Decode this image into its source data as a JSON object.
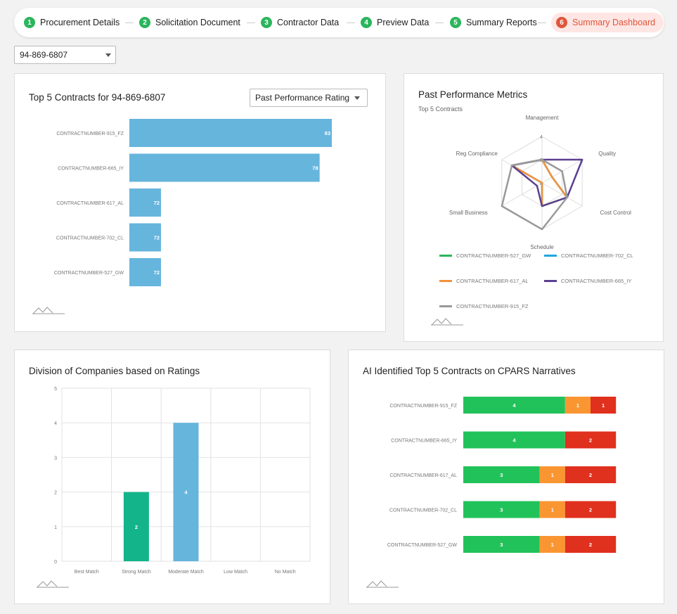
{
  "steps": [
    {
      "num": "1",
      "label": "Procurement Details"
    },
    {
      "num": "2",
      "label": "Solicitation Document"
    },
    {
      "num": "3",
      "label": "Contractor Data"
    },
    {
      "num": "4",
      "label": "Preview Data"
    },
    {
      "num": "5",
      "label": "Summary Reports"
    },
    {
      "num": "6",
      "label": "Summary Dashboard"
    }
  ],
  "uei_select": {
    "value": "94-869-6807"
  },
  "top5": {
    "title": "Top 5 Contracts for 94-869-6807",
    "metric_select": "Past Performance Rating"
  },
  "radar": {
    "title": "Past Performance Metrics",
    "subtitle": "Top 5 Contracts",
    "legend": [
      {
        "name": "CONTRACTNUMBER-527_GW",
        "color": "#2bb55c"
      },
      {
        "name": "CONTRACTNUMBER-702_CL",
        "color": "#1ea7e0"
      },
      {
        "name": "CONTRACTNUMBER-617_AL",
        "color": "#f5913a"
      },
      {
        "name": "CONTRACTNUMBER-665_IY",
        "color": "#5b3f8f"
      },
      {
        "name": "CONTRACTNUMBER-915_FZ",
        "color": "#999999"
      }
    ]
  },
  "division": {
    "title": "Division of Companies based on Ratings"
  },
  "cpars": {
    "title": "AI Identified Top 5 Contracts on CPARS Narratives"
  },
  "chart_data": [
    {
      "type": "bar",
      "orientation": "horizontal",
      "categories": [
        "CONTRACTNUMBER-915_FZ",
        "CONTRACTNUMBER-665_IY",
        "CONTRACTNUMBER-617_AL",
        "CONTRACTNUMBER-702_CL",
        "CONTRACTNUMBER-527_GW"
      ],
      "values": [
        83,
        78,
        72,
        72,
        72
      ],
      "color": "#66b5dd"
    },
    {
      "type": "radar",
      "axes": [
        "Management",
        "Quality",
        "Cost Control",
        "Schedule",
        "Small Business",
        "Reg Compliance"
      ],
      "ticks": [
        "4",
        "2",
        "0"
      ],
      "rmax": 4,
      "series": [
        {
          "name": "CONTRACTNUMBER-527_GW",
          "color": "#2bb55c",
          "values": [
            2,
            1,
            2.5,
            2,
            0,
            3
          ]
        },
        {
          "name": "CONTRACTNUMBER-702_CL",
          "color": "#1ea7e0",
          "values": [
            2,
            1,
            2.5,
            2,
            0,
            3
          ]
        },
        {
          "name": "CONTRACTNUMBER-617_AL",
          "color": "#f5913a",
          "values": [
            2,
            1,
            2.5,
            2,
            0,
            3
          ]
        },
        {
          "name": "CONTRACTNUMBER-665_IY",
          "color": "#5b3f8f",
          "values": [
            2,
            4,
            2.5,
            2,
            0.5,
            3
          ]
        },
        {
          "name": "CONTRACTNUMBER-915_FZ",
          "color": "#999999",
          "values": [
            2,
            2,
            2.5,
            4,
            4,
            3
          ]
        }
      ]
    },
    {
      "type": "bar",
      "categories": [
        "Best Match",
        "Strong Match",
        "Moderate Match",
        "Low Match",
        "No Match"
      ],
      "values": [
        0,
        2,
        4,
        0,
        0
      ],
      "colors": [
        "#13b48a",
        "#13b48a",
        "#66b5dd",
        "#66b5dd",
        "#66b5dd"
      ],
      "ylim": [
        0,
        5
      ],
      "yticks": [
        "0",
        "1",
        "2",
        "3",
        "4",
        "5"
      ]
    },
    {
      "type": "bar",
      "orientation": "horizontal",
      "stacked": true,
      "categories": [
        "CONTRACTNUMBER-915_FZ",
        "CONTRACTNUMBER-665_IY",
        "CONTRACTNUMBER-617_AL",
        "CONTRACTNUMBER-702_CL",
        "CONTRACTNUMBER-527_GW"
      ],
      "segments": [
        {
          "color": "#22c25a",
          "values": [
            4,
            4,
            3,
            3,
            3
          ]
        },
        {
          "color": "#fa9632",
          "values": [
            1,
            0,
            1,
            1,
            1
          ]
        },
        {
          "color": "#e0301e",
          "values": [
            1,
            2,
            2,
            2,
            2
          ]
        }
      ]
    }
  ]
}
